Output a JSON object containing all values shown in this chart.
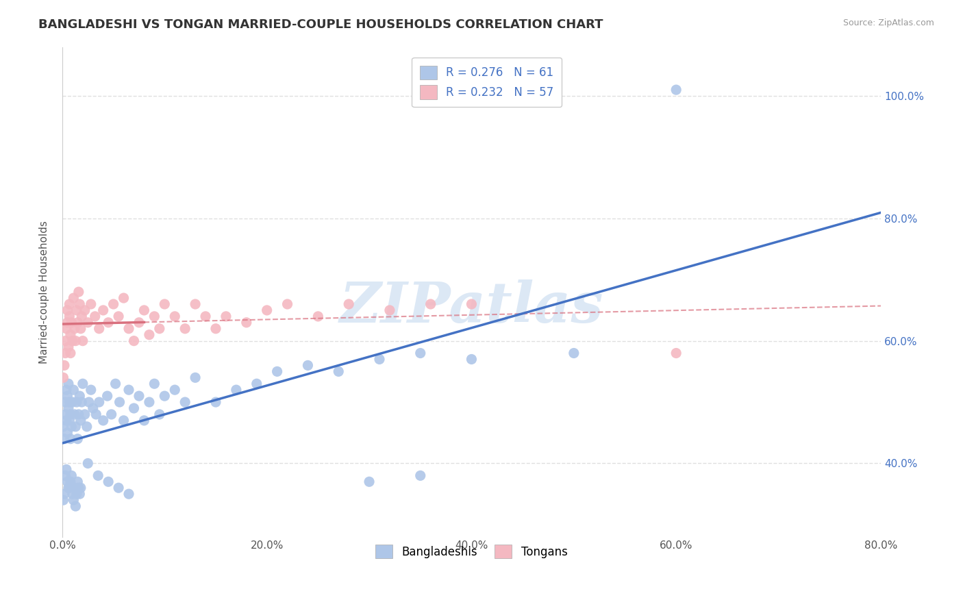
{
  "title": "BANGLADESHI VS TONGAN MARRIED-COUPLE HOUSEHOLDS CORRELATION CHART",
  "source_text": "Source: ZipAtlas.com",
  "ylabel": "Married-couple Households",
  "xlim": [
    0.0,
    0.8
  ],
  "ylim": [
    0.28,
    1.08
  ],
  "yticks": [
    0.4,
    0.6,
    0.8,
    1.0
  ],
  "xticks": [
    0.0,
    0.2,
    0.4,
    0.6,
    0.8
  ],
  "legend_entries": [
    {
      "label": "R = 0.276   N = 61",
      "color": "#aec6e8"
    },
    {
      "label": "R = 0.232   N = 57",
      "color": "#f4b8c1"
    }
  ],
  "legend_bottom_entries": [
    {
      "label": "Bangladeshis",
      "color": "#aec6e8"
    },
    {
      "label": "Tongans",
      "color": "#f4b8c1"
    }
  ],
  "bangladeshi_x": [
    0.001,
    0.002,
    0.003,
    0.003,
    0.004,
    0.004,
    0.005,
    0.005,
    0.006,
    0.006,
    0.007,
    0.007,
    0.008,
    0.008,
    0.009,
    0.01,
    0.011,
    0.012,
    0.013,
    0.014,
    0.015,
    0.016,
    0.017,
    0.018,
    0.019,
    0.02,
    0.022,
    0.024,
    0.026,
    0.028,
    0.03,
    0.033,
    0.036,
    0.04,
    0.044,
    0.048,
    0.052,
    0.056,
    0.06,
    0.065,
    0.07,
    0.075,
    0.08,
    0.085,
    0.09,
    0.095,
    0.1,
    0.11,
    0.12,
    0.13,
    0.15,
    0.17,
    0.19,
    0.21,
    0.24,
    0.27,
    0.31,
    0.35,
    0.4,
    0.5,
    0.6
  ],
  "bangladeshi_y": [
    0.46,
    0.44,
    0.5,
    0.48,
    0.52,
    0.47,
    0.51,
    0.45,
    0.49,
    0.53,
    0.47,
    0.5,
    0.48,
    0.44,
    0.46,
    0.5,
    0.52,
    0.48,
    0.46,
    0.5,
    0.44,
    0.48,
    0.51,
    0.47,
    0.5,
    0.53,
    0.48,
    0.46,
    0.5,
    0.52,
    0.49,
    0.48,
    0.5,
    0.47,
    0.51,
    0.48,
    0.53,
    0.5,
    0.47,
    0.52,
    0.49,
    0.51,
    0.47,
    0.5,
    0.53,
    0.48,
    0.51,
    0.52,
    0.5,
    0.54,
    0.5,
    0.52,
    0.53,
    0.55,
    0.56,
    0.55,
    0.57,
    0.58,
    0.57,
    0.58,
    1.01
  ],
  "bangladeshi_y_outliers": [
    0.34,
    0.35,
    0.38,
    0.39,
    0.37,
    0.36,
    0.36,
    0.37,
    0.38,
    0.35,
    0.34,
    0.36,
    0.33,
    0.35,
    0.37,
    0.36,
    0.35,
    0.36,
    0.4,
    0.38,
    0.37,
    0.36,
    0.35,
    0.37,
    0.38
  ],
  "bangladeshi_x_outliers": [
    0.001,
    0.002,
    0.003,
    0.004,
    0.005,
    0.006,
    0.007,
    0.008,
    0.009,
    0.01,
    0.011,
    0.012,
    0.013,
    0.014,
    0.015,
    0.016,
    0.017,
    0.018,
    0.025,
    0.035,
    0.045,
    0.055,
    0.065,
    0.3,
    0.35
  ],
  "tongan_x": [
    0.001,
    0.002,
    0.003,
    0.003,
    0.004,
    0.005,
    0.005,
    0.006,
    0.007,
    0.007,
    0.008,
    0.008,
    0.009,
    0.01,
    0.011,
    0.012,
    0.013,
    0.014,
    0.015,
    0.016,
    0.017,
    0.018,
    0.019,
    0.02,
    0.022,
    0.025,
    0.028,
    0.032,
    0.036,
    0.04,
    0.045,
    0.05,
    0.055,
    0.06,
    0.065,
    0.07,
    0.075,
    0.08,
    0.085,
    0.09,
    0.095,
    0.1,
    0.11,
    0.12,
    0.13,
    0.14,
    0.15,
    0.16,
    0.18,
    0.2,
    0.22,
    0.25,
    0.28,
    0.32,
    0.36,
    0.4,
    0.6
  ],
  "tongan_y": [
    0.54,
    0.56,
    0.6,
    0.58,
    0.62,
    0.65,
    0.63,
    0.59,
    0.64,
    0.66,
    0.61,
    0.58,
    0.63,
    0.6,
    0.67,
    0.62,
    0.6,
    0.65,
    0.63,
    0.68,
    0.66,
    0.62,
    0.64,
    0.6,
    0.65,
    0.63,
    0.66,
    0.64,
    0.62,
    0.65,
    0.63,
    0.66,
    0.64,
    0.67,
    0.62,
    0.6,
    0.63,
    0.65,
    0.61,
    0.64,
    0.62,
    0.66,
    0.64,
    0.62,
    0.66,
    0.64,
    0.62,
    0.64,
    0.63,
    0.65,
    0.66,
    0.64,
    0.66,
    0.65,
    0.66,
    0.66,
    0.58
  ],
  "scatter_size": 120,
  "blue_scatter_color": "#aec6e8",
  "pink_scatter_color": "#f4b8c1",
  "blue_line_color": "#4472c4",
  "pink_line_color": "#d9707e",
  "trend_lw": 2.5,
  "diag_line_color": "#d9a0a8",
  "diag_lw": 1.5,
  "watermark_color": "#dce8f5",
  "background_color": "#ffffff",
  "grid_color": "#e0e0e0",
  "title_fontsize": 13,
  "axis_fontsize": 11,
  "tick_fontsize": 11
}
